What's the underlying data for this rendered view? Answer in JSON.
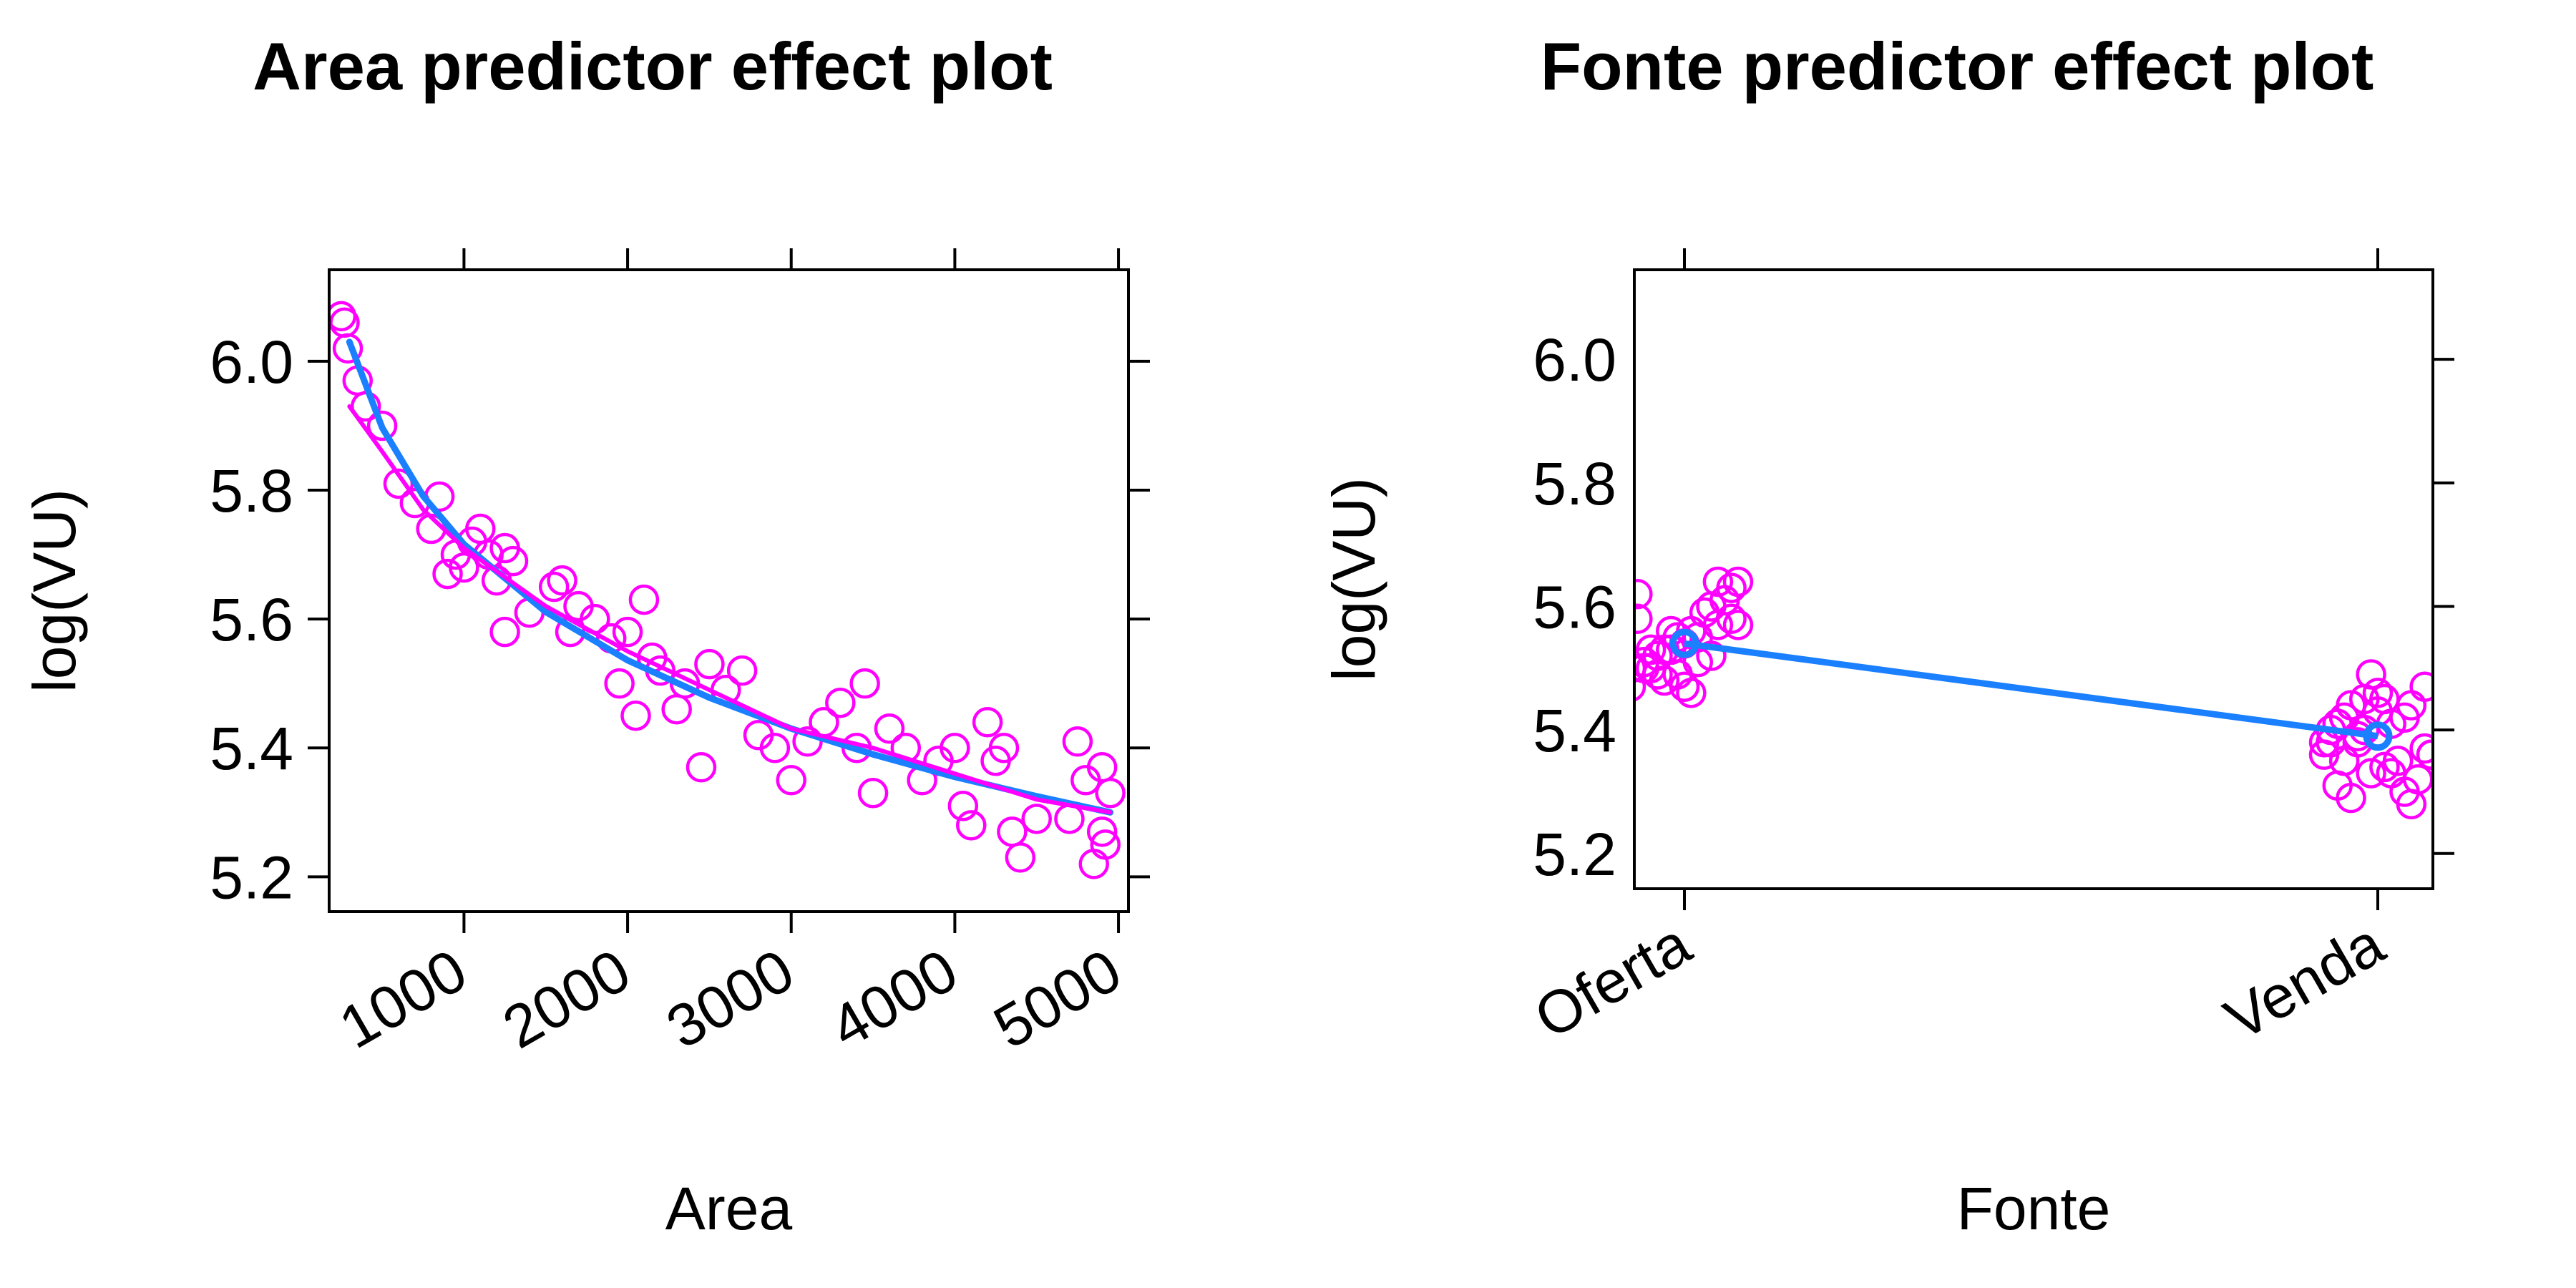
{
  "chart_data": [
    {
      "type": "scatter",
      "title": "Area predictor effect plot",
      "xlabel": "Area",
      "ylabel": "log(VU)",
      "xlim": [
        176,
        5061
      ],
      "ylim": [
        5.146,
        6.142
      ],
      "xticks": [
        1000,
        2000,
        3000,
        4000,
        5000
      ],
      "yticks": [
        {
          "value": 6,
          "label": "6.0"
        },
        5.8,
        5.6,
        5.4,
        5.2
      ],
      "points": {
        "color": "#ff00ff",
        "x": [
          250,
          270,
          290,
          350,
          400,
          500,
          600,
          700,
          800,
          850,
          900,
          950,
          1000,
          1050,
          1100,
          1150,
          1200,
          1250,
          1300,
          1400,
          1250,
          1550,
          1600,
          1650,
          1700,
          1800,
          1900,
          1950,
          2000,
          2050,
          2100,
          2150,
          2200,
          2300,
          2350,
          2450,
          2500,
          2600,
          2700,
          2800,
          2900,
          3000,
          3100,
          3200,
          3300,
          3400,
          3450,
          3500,
          3600,
          3700,
          3800,
          3900,
          4000,
          4050,
          4100,
          4200,
          4250,
          4300,
          4350,
          4400,
          4500,
          4700,
          4750,
          4800,
          4850,
          4900,
          4900,
          4950,
          4920
        ],
        "y": [
          6.07,
          6.06,
          6.02,
          5.97,
          5.93,
          5.9,
          5.81,
          5.78,
          5.74,
          5.79,
          5.67,
          5.7,
          5.68,
          5.72,
          5.74,
          5.7,
          5.66,
          5.71,
          5.69,
          5.61,
          5.58,
          5.65,
          5.66,
          5.58,
          5.62,
          5.6,
          5.57,
          5.5,
          5.58,
          5.45,
          5.63,
          5.54,
          5.52,
          5.46,
          5.5,
          5.37,
          5.53,
          5.49,
          5.52,
          5.42,
          5.4,
          5.35,
          5.41,
          5.44,
          5.47,
          5.4,
          5.5,
          5.33,
          5.43,
          5.4,
          5.35,
          5.38,
          5.4,
          5.31,
          5.28,
          5.44,
          5.38,
          5.4,
          5.27,
          5.23,
          5.29,
          5.29,
          5.41,
          5.35,
          5.22,
          5.37,
          5.27,
          5.33,
          5.25
        ]
      },
      "fit": {
        "color": "#1a80ff",
        "x": [
          300,
          500,
          750,
          1000,
          1500,
          2000,
          2500,
          3000,
          3500,
          4000,
          4500,
          4950
        ],
        "y": [
          6.03,
          5.897,
          5.791,
          5.716,
          5.611,
          5.536,
          5.478,
          5.43,
          5.39,
          5.355,
          5.325,
          5.3
        ]
      },
      "smooth": {
        "color": "#ff00ff",
        "x": [
          300,
          500,
          750,
          1000,
          1500,
          2000,
          2500,
          3000,
          3500,
          4000,
          4500,
          4950
        ],
        "y": [
          5.93,
          5.86,
          5.77,
          5.71,
          5.62,
          5.55,
          5.49,
          5.43,
          5.4,
          5.36,
          5.32,
          5.3
        ]
      }
    },
    {
      "type": "effect",
      "title": "Fonte predictor effect plot",
      "xlabel": "Fonte",
      "ylabel": "log(VU)",
      "ylim": [
        5.143,
        6.145
      ],
      "yticks": [
        {
          "value": 6,
          "label": "6.0"
        },
        5.8,
        5.6,
        5.4,
        5.2
      ],
      "categories": [
        "Oferta",
        "Venda"
      ],
      "values": [
        5.54,
        5.39
      ],
      "color": "#1a80ff",
      "residuals_color": "#ff00ff",
      "residuals": [
        [
          5.47,
          5.5,
          5.53,
          5.56,
          5.6,
          5.63,
          5.58,
          5.52,
          5.49,
          5.55,
          5.64,
          5.57,
          5.51,
          5.48,
          5.54,
          5.59,
          5.61,
          5.5,
          5.53,
          5.56,
          5.46,
          5.52,
          5.58,
          5.62,
          5.49,
          5.55,
          5.51,
          5.57,
          5.64,
          5.5,
          5.53,
          5.47
        ],
        [
          5.36,
          5.35,
          5.4,
          5.45,
          5.42,
          5.47,
          5.38,
          5.29,
          5.33,
          5.41,
          5.44,
          5.36,
          5.31,
          5.39,
          5.43,
          5.35,
          5.32,
          5.38,
          5.42,
          5.45,
          5.34,
          5.3,
          5.37,
          5.4,
          5.44,
          5.49,
          5.33,
          5.28,
          5.36,
          5.41,
          5.38,
          5.46
        ]
      ]
    }
  ]
}
